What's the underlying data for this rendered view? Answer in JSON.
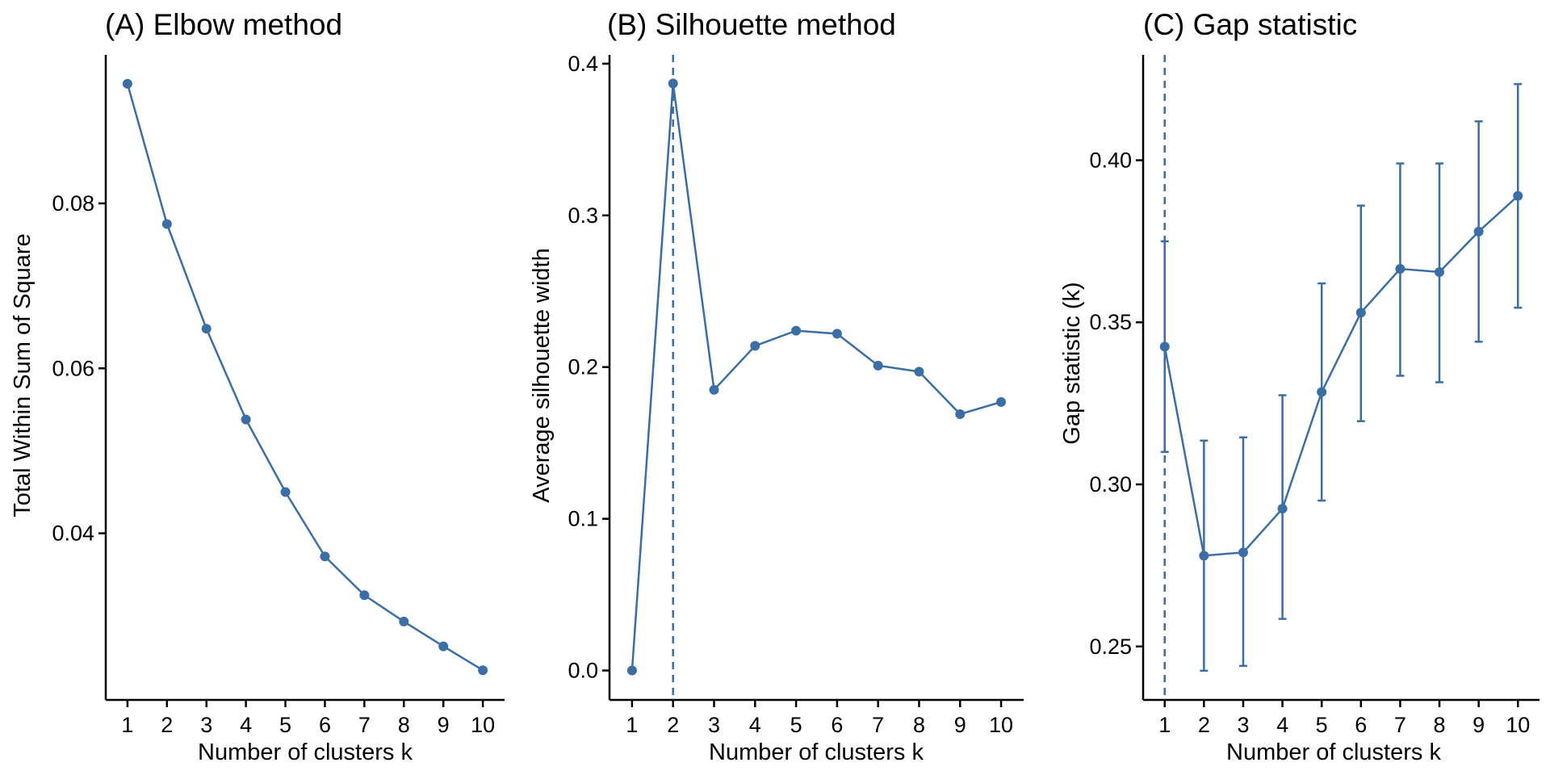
{
  "colors": {
    "series": "#3a6ea5",
    "axis": "#000000",
    "background": "#ffffff"
  },
  "chart_data": [
    {
      "type": "line",
      "title": "(A) Elbow method",
      "xlabel": "Number of clusters k",
      "ylabel": "Total Within Sum of Square",
      "x": [
        1,
        2,
        3,
        4,
        5,
        6,
        7,
        8,
        9,
        10
      ],
      "xticks": [
        "1",
        "2",
        "3",
        "4",
        "5",
        "6",
        "7",
        "8",
        "9",
        "10"
      ],
      "values": [
        0.0945,
        0.0775,
        0.0648,
        0.0538,
        0.045,
        0.0372,
        0.0325,
        0.0293,
        0.0263,
        0.0234
      ],
      "yticks": [
        0.04,
        0.06,
        0.08
      ],
      "ytick_labels": [
        "0.04",
        "0.06",
        "0.08"
      ],
      "xlim": [
        0.45,
        10.55
      ],
      "ylim": [
        0.0198,
        0.098
      ],
      "grid": false
    },
    {
      "type": "line",
      "title": "(B) Silhouette method",
      "xlabel": "Number of clusters k",
      "ylabel": "Average silhouette width",
      "x": [
        1,
        2,
        3,
        4,
        5,
        6,
        7,
        8,
        9,
        10
      ],
      "xticks": [
        "1",
        "2",
        "3",
        "4",
        "5",
        "6",
        "7",
        "8",
        "9",
        "10"
      ],
      "values": [
        0.0,
        0.387,
        0.185,
        0.214,
        0.224,
        0.222,
        0.201,
        0.197,
        0.169,
        0.177
      ],
      "yticks": [
        0.0,
        0.1,
        0.2,
        0.3,
        0.4
      ],
      "ytick_labels": [
        "0.0",
        "0.1",
        "0.2",
        "0.3",
        "0.4"
      ],
      "xlim": [
        0.45,
        10.55
      ],
      "ylim": [
        -0.0194,
        0.4058
      ],
      "vline": 2,
      "grid": false
    },
    {
      "type": "line",
      "title": "(C) Gap statistic",
      "xlabel": "Number of clusters k",
      "ylabel": "Gap statistic (k)",
      "x": [
        1,
        2,
        3,
        4,
        5,
        6,
        7,
        8,
        9,
        10
      ],
      "xticks": [
        "1",
        "2",
        "3",
        "4",
        "5",
        "6",
        "7",
        "8",
        "9",
        "10"
      ],
      "values": [
        0.3425,
        0.278,
        0.279,
        0.2925,
        0.3285,
        0.353,
        0.3665,
        0.3655,
        0.378,
        0.389
      ],
      "error_lower": [
        0.31,
        0.2425,
        0.244,
        0.2585,
        0.295,
        0.3195,
        0.3335,
        0.3315,
        0.344,
        0.3545
      ],
      "error_upper": [
        0.375,
        0.3135,
        0.3145,
        0.3275,
        0.362,
        0.386,
        0.399,
        0.399,
        0.412,
        0.4235
      ],
      "yticks": [
        0.25,
        0.3,
        0.35,
        0.4
      ],
      "ytick_labels": [
        "0.25",
        "0.30",
        "0.35",
        "0.40"
      ],
      "xlim": [
        0.45,
        10.55
      ],
      "ylim": [
        0.2335,
        0.4325
      ],
      "vline": 1,
      "grid": false
    }
  ]
}
